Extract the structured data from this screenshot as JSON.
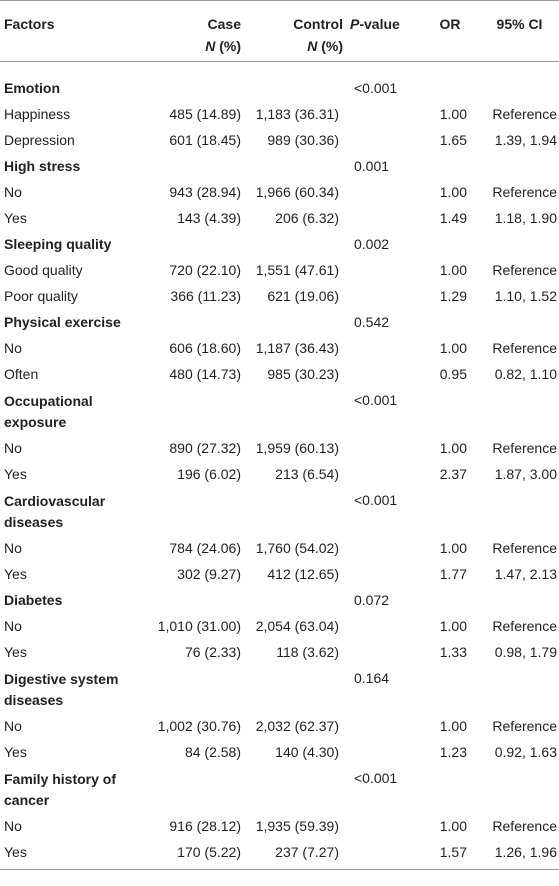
{
  "table": {
    "headers": {
      "factors": "Factors",
      "case": "Case",
      "case_sub": "N (%)",
      "control": "Control",
      "control_sub": "N (%)",
      "p_value": "P-value",
      "or": "OR",
      "ci": "95% CI"
    },
    "groups": [
      {
        "name": "Emotion",
        "p": "<0.001",
        "rows": [
          {
            "label": "Happiness",
            "case": "485 (14.89)",
            "control": "1,183 (36.31)",
            "or": "1.00",
            "ci": "Reference"
          },
          {
            "label": "Depression",
            "case": "601 (18.45)",
            "control": "989 (30.36)",
            "or": "1.65",
            "ci": "1.39, 1.94"
          }
        ]
      },
      {
        "name": "High stress",
        "p": "0.001",
        "rows": [
          {
            "label": "No",
            "case": "943 (28.94)",
            "control": "1,966 (60.34)",
            "or": "1.00",
            "ci": "Reference"
          },
          {
            "label": "Yes",
            "case": "143 (4.39)",
            "control": "206 (6.32)",
            "or": "1.49",
            "ci": "1.18, 1.90"
          }
        ]
      },
      {
        "name": "Sleeping quality",
        "p": "0.002",
        "rows": [
          {
            "label": "Good quality",
            "case": "720 (22.10)",
            "control": "1,551 (47.61)",
            "or": "1.00",
            "ci": "Reference"
          },
          {
            "label": "Poor quality",
            "case": "366 (11.23)",
            "control": "621 (19.06)",
            "or": "1.29",
            "ci": "1.10, 1.52"
          }
        ]
      },
      {
        "name": "Physical exercise",
        "p": "0.542",
        "rows": [
          {
            "label": "No",
            "case": "606 (18.60)",
            "control": "1,187 (36.43)",
            "or": "1.00",
            "ci": "Reference"
          },
          {
            "label": "Often",
            "case": "480 (14.73)",
            "control": "985 (30.23)",
            "or": "0.95",
            "ci": "0.82, 1.10"
          }
        ]
      },
      {
        "name_line1": "Occupational",
        "name_line2": "exposure",
        "p": "<0.001",
        "rows": [
          {
            "label": "No",
            "case": "890 (27.32)",
            "control": "1,959 (60.13)",
            "or": "1.00",
            "ci": "Reference"
          },
          {
            "label": "Yes",
            "case": "196 (6.02)",
            "control": "213 (6.54)",
            "or": "2.37",
            "ci": "1.87, 3.00"
          }
        ]
      },
      {
        "name_line1": "Cardiovascular",
        "name_line2": "diseases",
        "p": "<0.001",
        "rows": [
          {
            "label": "No",
            "case": "784 (24.06)",
            "control": "1,760 (54.02)",
            "or": "1.00",
            "ci": "Reference"
          },
          {
            "label": "Yes",
            "case": "302 (9.27)",
            "control": "412 (12.65)",
            "or": "1.77",
            "ci": "1.47, 2.13"
          }
        ]
      },
      {
        "name": "Diabetes",
        "p": "0.072",
        "rows": [
          {
            "label": "No",
            "case": "1,010 (31.00)",
            "control": "2,054 (63.04)",
            "or": "1.00",
            "ci": "Reference"
          },
          {
            "label": "Yes",
            "case": "76 (2.33)",
            "control": "118 (3.62)",
            "or": "1.33",
            "ci": "0.98, 1.79"
          }
        ]
      },
      {
        "name_line1": "Digestive system",
        "name_line2": "diseases",
        "p": "0.164",
        "rows": [
          {
            "label": "No",
            "case": "1,002 (30.76)",
            "control": "2,032 (62.37)",
            "or": "1.00",
            "ci": "Reference"
          },
          {
            "label": "Yes",
            "case": "84 (2.58)",
            "control": "140 (4.30)",
            "or": "1.23",
            "ci": "0.92, 1.63"
          }
        ]
      },
      {
        "name_line1": "Family history of",
        "name_line2": "cancer",
        "p": "<0.001",
        "rows": [
          {
            "label": "No",
            "case": "916 (28.12)",
            "control": "1,935 (59.39)",
            "or": "1.00",
            "ci": "Reference"
          },
          {
            "label": "Yes",
            "case": "170 (5.22)",
            "control": "237 (7.27)",
            "or": "1.57",
            "ci": "1.26, 1.96"
          }
        ]
      }
    ]
  }
}
